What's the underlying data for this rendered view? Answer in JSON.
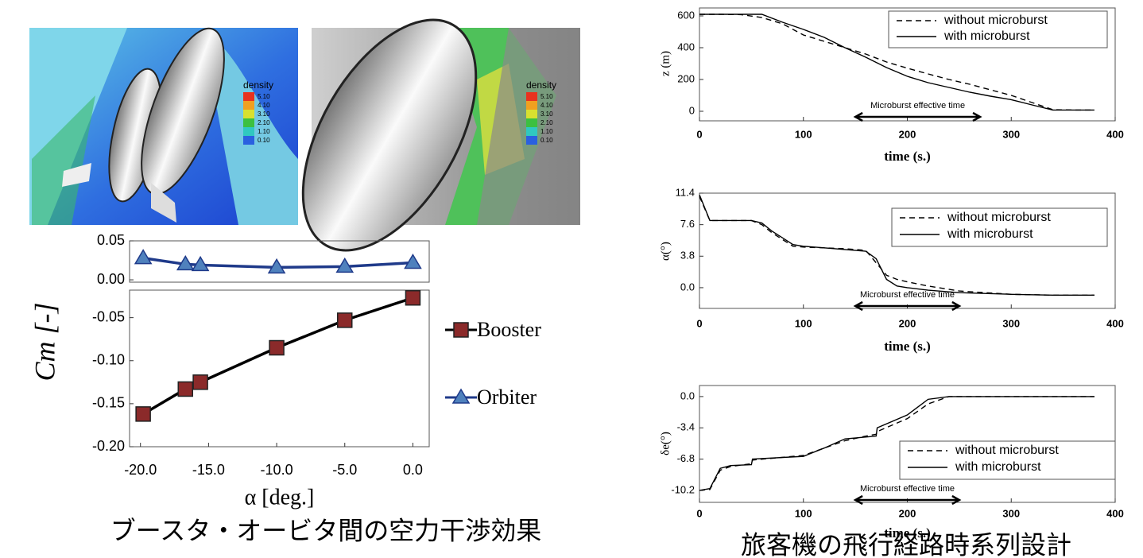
{
  "images": [
    {
      "legend_title": "density",
      "legend_labels": [
        "5.10",
        "4.10",
        "3.10",
        "2.10",
        "1.10",
        "0.10"
      ]
    },
    {
      "legend_title": "density",
      "legend_labels": [
        "5.10",
        "4.10",
        "3.10",
        "2.10",
        "1.10",
        "0.10"
      ]
    }
  ],
  "captions": [
    "ブースタ・オービタ間の空力干渉効果",
    "旅客機の飛行経路時系列設計"
  ],
  "chart_data": [
    {
      "type": "line",
      "x": [
        -19.8,
        -16.7,
        -15.6,
        -10,
        -5,
        0
      ],
      "series": [
        {
          "name": "Orbiter",
          "color": "#1f3a8a",
          "marker_color": "#4f81bd",
          "marker": "triangle",
          "values": [
            0.028,
            0.02,
            0.019,
            0.016,
            0.017,
            0.022
          ]
        }
      ],
      "xlim": [
        -20.8,
        1.2
      ],
      "ylim": [
        -0.003,
        0.05
      ],
      "yticks": [
        {
          "value": 0,
          "label": "0.00"
        },
        0.05
      ]
    },
    {
      "type": "line",
      "x": [
        -19.8,
        -16.7,
        -15.6,
        -10,
        -5,
        0
      ],
      "series": [
        {
          "name": "Booster",
          "color": "#000000",
          "marker_color": "#8b2a2a",
          "marker": "square",
          "values": [
            -0.162,
            -0.133,
            -0.125,
            -0.085,
            -0.053,
            -0.027
          ]
        }
      ],
      "xlim": [
        -20.8,
        1.2
      ],
      "ylim": [
        -0.2,
        -0.018
      ],
      "xticks": [
        {
          "value": -20,
          "label": "-20.0"
        },
        {
          "value": -15,
          "label": "-15.0"
        },
        {
          "value": -10,
          "label": "-10.0"
        },
        {
          "value": -5,
          "label": "-5.0"
        },
        {
          "value": 0,
          "label": "0.0"
        }
      ],
      "yticks": [
        -0.05,
        {
          "value": -0.1,
          "label": "-0.10"
        },
        -0.15,
        {
          "value": -0.2,
          "label": "-0.20"
        }
      ],
      "xlabel": "α [deg.]",
      "ylabel": "Cm [-]"
    },
    {
      "type": "line",
      "x": [
        0,
        20,
        40,
        60,
        80,
        100,
        120,
        140,
        160,
        180,
        200,
        220,
        240,
        260,
        280,
        300,
        320,
        340,
        360,
        380
      ],
      "series": [
        {
          "name": "without microburst",
          "color": "#000000",
          "line_style": "dashed",
          "values": [
            610,
            610,
            608,
            590,
            550,
            480,
            440,
            400,
            360,
            310,
            271,
            235,
            200,
            170,
            135,
            100,
            55,
            10,
            8,
            8
          ]
        },
        {
          "name": "with microburst",
          "color": "#000000",
          "line_style": "solid",
          "values": [
            610,
            610,
            610,
            610,
            560,
            515,
            465,
            400,
            340,
            275,
            220,
            180,
            150,
            120,
            95,
            73,
            40,
            8,
            8,
            8
          ]
        }
      ],
      "xlim": [
        0,
        400
      ],
      "ylim": [
        -60,
        650
      ],
      "xticks": [
        0,
        100,
        200,
        300,
        400
      ],
      "yticks": [
        0,
        200,
        400,
        600
      ],
      "xlabel": "time (s.)",
      "ylabel": "z (m)",
      "annotation": {
        "text": "Microburst effective time",
        "x": [
          150,
          270
        ]
      }
    },
    {
      "type": "line",
      "x": [
        0,
        10,
        50,
        60,
        70,
        80,
        90,
        100,
        120,
        140,
        160,
        170,
        180,
        190,
        200,
        220,
        250,
        300,
        340,
        380
      ],
      "series": [
        {
          "name": "without microburst",
          "color": "#000000",
          "line_style": "dashed",
          "values": [
            11.0,
            8.1,
            8.1,
            7.6,
            6.6,
            5.8,
            5.0,
            4.9,
            4.8,
            4.7,
            4.5,
            3.0,
            1.5,
            1.0,
            0.7,
            0.2,
            -0.4,
            -0.8,
            -0.9,
            -0.9
          ]
        },
        {
          "name": "with microburst",
          "color": "#000000",
          "line_style": "solid",
          "values": [
            11.2,
            8.1,
            8.1,
            7.8,
            6.8,
            6.0,
            5.2,
            5.0,
            4.8,
            4.6,
            4.4,
            3.5,
            1.0,
            0.2,
            0.0,
            -0.3,
            -0.6,
            -0.8,
            -0.9,
            -0.9
          ]
        }
      ],
      "xlim": [
        0,
        400
      ],
      "ylim": [
        -2.5,
        11.4
      ],
      "xticks": [
        0,
        100,
        200,
        300,
        400
      ],
      "yticks": [
        {
          "value": 0,
          "label": "0.0"
        },
        3.8,
        7.6,
        11.4
      ],
      "xlabel": "time (s.)",
      "ylabel": "α(°)",
      "annotation": {
        "text": "Microburst effective time",
        "x": [
          150,
          250
        ]
      }
    },
    {
      "type": "line",
      "x": [
        0,
        10,
        20,
        30,
        50,
        51,
        100,
        120,
        140,
        160,
        170,
        171,
        200,
        220,
        240,
        260,
        300,
        340,
        380
      ],
      "series": [
        {
          "name": "without microburst",
          "color": "#000000",
          "line_style": "dashed",
          "values": [
            -10.2,
            -10.1,
            -8.0,
            -7.6,
            -7.3,
            -6.9,
            -6.4,
            -5.6,
            -4.8,
            -4.3,
            -4.1,
            -3.8,
            -2.4,
            -0.8,
            0.0,
            0.0,
            0.0,
            0.0,
            0.0
          ]
        },
        {
          "name": "with microburst",
          "color": "#000000",
          "line_style": "solid",
          "values": [
            -10.2,
            -10.0,
            -7.8,
            -7.5,
            -7.4,
            -6.8,
            -6.5,
            -5.6,
            -4.6,
            -4.4,
            -4.3,
            -3.4,
            -2.0,
            -0.3,
            0.0,
            0.0,
            0.0,
            0.0,
            0.0
          ]
        }
      ],
      "xlim": [
        0,
        400
      ],
      "ylim": [
        -11.5,
        1.2
      ],
      "xticks": [
        0,
        100,
        200,
        300,
        400
      ],
      "yticks": [
        -10.2,
        -6.8,
        -3.4,
        {
          "value": 0,
          "label": "0.0"
        }
      ],
      "xlabel": "time (s.)",
      "ylabel": "δe(°)",
      "annotation": {
        "text": "Microburst effective time",
        "x": [
          150,
          250
        ]
      }
    }
  ]
}
